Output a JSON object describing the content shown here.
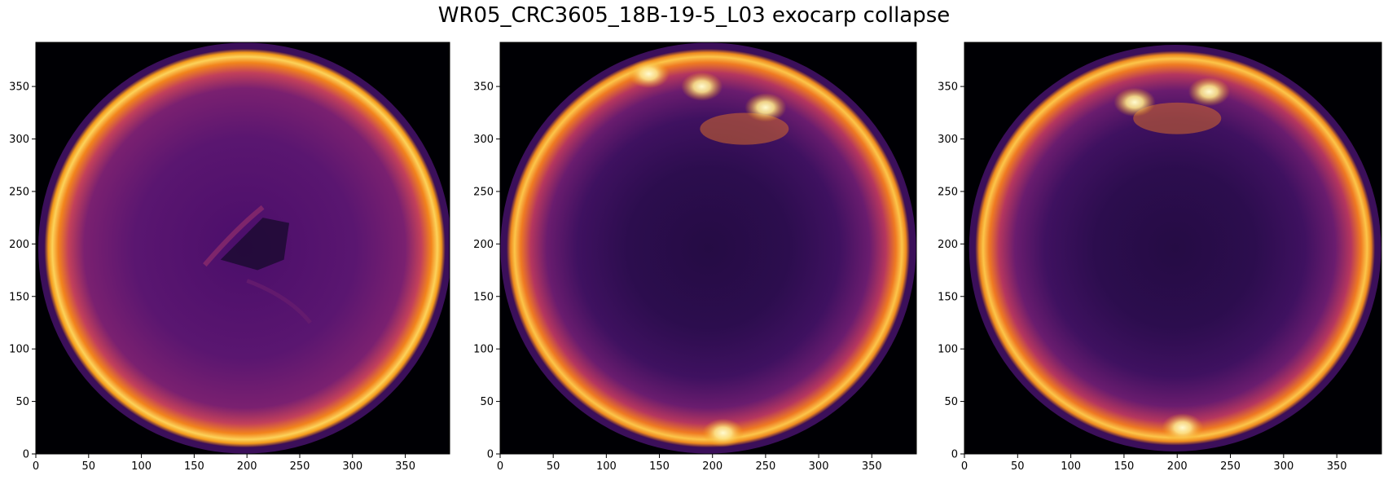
{
  "title": "WR05_CRC3605_18B-19-5_L03 exocarp collapse",
  "chart_data": [
    {
      "type": "heatmap",
      "panel": "left",
      "colormap": "inferno",
      "xlim": [
        0,
        392
      ],
      "ylim": [
        0,
        392
      ],
      "xticks": [
        0,
        50,
        100,
        150,
        200,
        250,
        300,
        350
      ],
      "yticks": [
        0,
        50,
        100,
        150,
        200,
        250,
        300,
        350
      ],
      "center": [
        198,
        196
      ],
      "radius": 190,
      "rim_hotspots": [],
      "center_feature": true
    },
    {
      "type": "heatmap",
      "panel": "middle",
      "colormap": "inferno",
      "xlim": [
        0,
        392
      ],
      "ylim": [
        0,
        392
      ],
      "xticks": [
        0,
        50,
        100,
        150,
        200,
        250,
        300,
        350
      ],
      "yticks": [
        0,
        50,
        100,
        150,
        200,
        250,
        300,
        350
      ],
      "center": [
        196,
        196
      ],
      "radius": 190,
      "rim_hotspots": [
        [
          140,
          362
        ],
        [
          190,
          350
        ],
        [
          250,
          330
        ],
        [
          210,
          20
        ]
      ],
      "top_notch": [
        230,
        305
      ],
      "center_feature": false
    },
    {
      "type": "heatmap",
      "panel": "right",
      "colormap": "inferno",
      "xlim": [
        0,
        392
      ],
      "ylim": [
        0,
        392
      ],
      "xticks": [
        0,
        50,
        100,
        150,
        200,
        250,
        300,
        350
      ],
      "yticks": [
        0,
        50,
        100,
        150,
        200,
        250,
        300,
        350
      ],
      "center": [
        198,
        196
      ],
      "radius": 188,
      "rim_hotspots": [
        [
          160,
          335
        ],
        [
          230,
          345
        ],
        [
          205,
          25
        ]
      ],
      "top_notch": [
        200,
        315
      ],
      "center_feature": false
    }
  ]
}
